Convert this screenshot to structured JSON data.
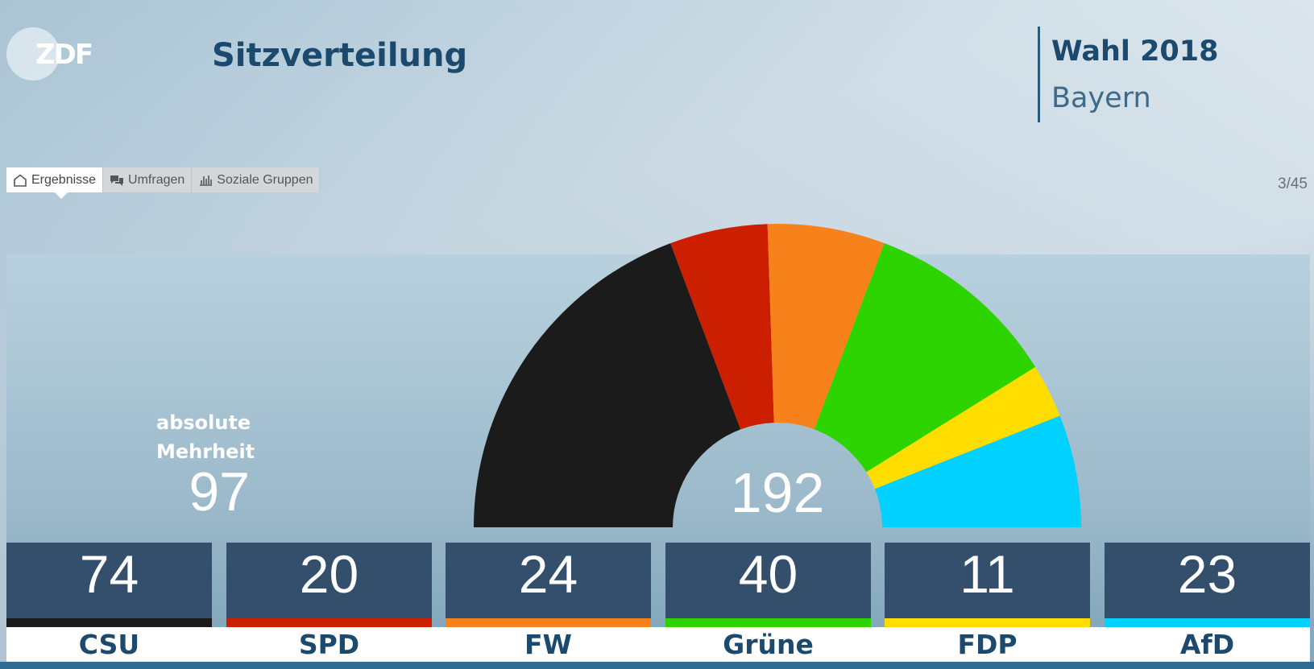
{
  "header": {
    "logo": "ZDF",
    "title": "Sitzverteilung",
    "election": "Wahl 2018",
    "region": "Bayern"
  },
  "tabs": [
    {
      "label": "Ergebnisse",
      "icon": "home-icon",
      "active": true
    },
    {
      "label": "Umfragen",
      "icon": "chat-icon",
      "active": false
    },
    {
      "label": "Soziale Gruppen",
      "icon": "bar-chart-icon",
      "active": false
    }
  ],
  "page_indicator": "3/45",
  "majority": {
    "label_line1": "absolute",
    "label_line2": "Mehrheit",
    "value": "97"
  },
  "chart_data": {
    "type": "pie",
    "shape": "semicircle",
    "total": 192,
    "total_label": "192",
    "categories": [
      "CSU",
      "SPD",
      "FW",
      "Grüne",
      "FDP",
      "AfD"
    ],
    "values": [
      74,
      20,
      24,
      40,
      11,
      23
    ],
    "value_labels": [
      "74",
      "20",
      "24",
      "40",
      "11",
      "23"
    ],
    "colors": [
      "#1b1b1b",
      "#cc1f00",
      "#f7821b",
      "#2dd400",
      "#ffdd00",
      "#00d1ff"
    ]
  }
}
